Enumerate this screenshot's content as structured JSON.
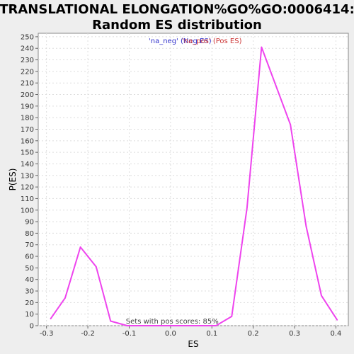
{
  "chart_data": {
    "type": "line",
    "title_lines": [
      "TRANSLATIONAL ELONGATION%GO%GO:0006414:",
      "Random ES distribution"
    ],
    "xlabel": "ES",
    "ylabel": "P(ES)",
    "xlim": [
      -0.32,
      0.43
    ],
    "ylim": [
      0,
      253
    ],
    "xticks": [
      -0.3,
      -0.2,
      -0.1,
      0.0,
      0.1,
      0.2,
      0.3,
      0.4
    ],
    "xtick_labels": [
      "-0.3",
      "-0.2",
      "-0.1",
      "0.0",
      "0.1",
      "0.2",
      "0.3",
      "0.4"
    ],
    "yticks": [
      0,
      10,
      20,
      30,
      40,
      50,
      60,
      70,
      80,
      90,
      100,
      110,
      120,
      130,
      140,
      150,
      160,
      170,
      180,
      190,
      200,
      210,
      220,
      230,
      240,
      250
    ],
    "grid": true,
    "legend": [
      {
        "label": "'na_neg' (Neg ES)",
        "color": "#3333cc"
      },
      {
        "label": "'na_pos' (Pos ES)",
        "color": "#cc3333"
      }
    ],
    "legend_placement": "top-center",
    "series": [
      {
        "color": "#ee44ee",
        "x": [
          -0.29,
          -0.255,
          -0.218,
          -0.18,
          -0.145,
          -0.105,
          -0.07,
          0.0,
          0.07,
          0.11,
          0.148,
          0.185,
          0.22,
          0.29,
          0.328,
          0.365,
          0.403
        ],
        "y": [
          6,
          24,
          68,
          51,
          4,
          0,
          0,
          0,
          0,
          0,
          8,
          102,
          241,
          174,
          86,
          26,
          5
        ]
      }
    ],
    "annotations": [
      "Sets with pos scores: 85%"
    ]
  }
}
